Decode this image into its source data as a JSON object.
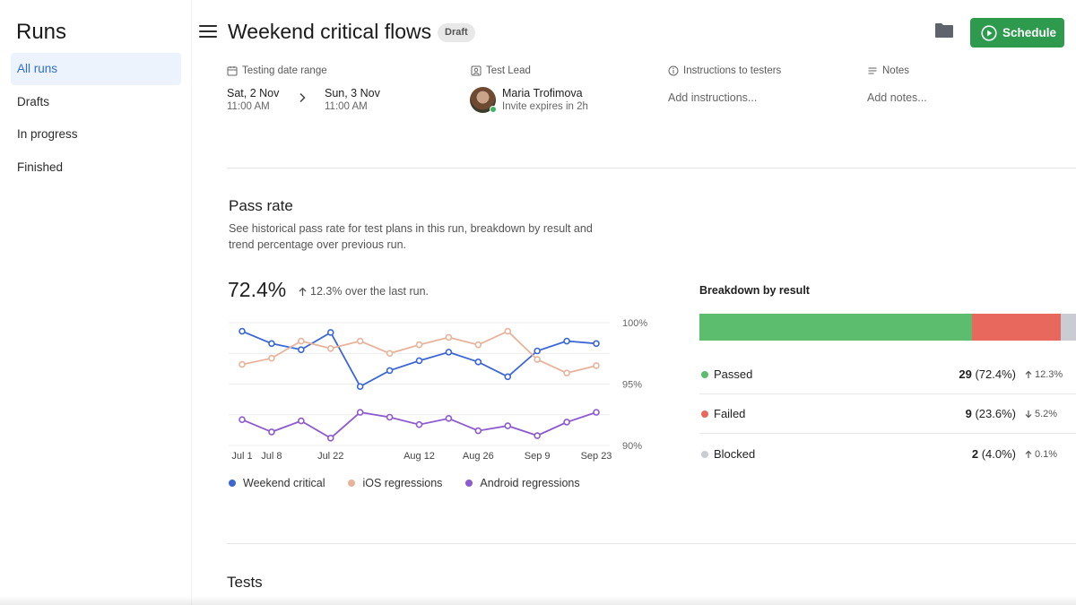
{
  "sidebar": {
    "title": "Runs",
    "items": [
      {
        "label": "All runs"
      },
      {
        "label": "Drafts"
      },
      {
        "label": "In progress"
      },
      {
        "label": "Finished"
      }
    ]
  },
  "header": {
    "title": "Weekend critical flows",
    "badge": "Draft",
    "schedule_label": "Schedule"
  },
  "meta": {
    "date_range": {
      "label": "Testing date range",
      "start_date": "Sat, 2 Nov",
      "start_time": "11:00 AM",
      "end_date": "Sun, 3 Nov",
      "end_time": "11:00 AM"
    },
    "test_lead": {
      "label": "Test Lead",
      "name": "Maria Trofimova",
      "status": "Invite expires in 2h"
    },
    "instructions": {
      "label": "Instructions to testers",
      "placeholder": "Add instructions..."
    },
    "notes": {
      "label": "Notes",
      "placeholder": "Add notes..."
    }
  },
  "pass_rate": {
    "title": "Pass rate",
    "description": "See historical pass rate for test plans in this run, breakdown by result and trend percentage over previous run.",
    "value": "72.4%",
    "trend": "12.3% over the last run."
  },
  "chart_data": {
    "type": "line",
    "title": "",
    "xlabel": "",
    "ylabel": "",
    "ylim": [
      90,
      100
    ],
    "y_ticks": [
      "100%",
      "95%",
      "90%"
    ],
    "x_tick_labels": [
      "Jul 1",
      "Jul 8",
      "Jul 22",
      "Aug 12",
      "Aug 26",
      "Sep 9",
      "Sep 23"
    ],
    "series": [
      {
        "name": "Weekend critical",
        "color": "#3a66d6",
        "values": [
          99.3,
          98.3,
          97.8,
          99.2,
          94.8,
          96.1,
          96.9,
          97.6,
          96.8,
          95.6,
          97.7,
          98.5,
          98.3
        ]
      },
      {
        "name": "iOS regressions",
        "color": "#e8b39a",
        "values": [
          96.6,
          97.1,
          98.5,
          97.9,
          98.5,
          97.5,
          98.2,
          98.8,
          98.2,
          99.3,
          97.0,
          95.9,
          96.5
        ]
      },
      {
        "name": "Android regressions",
        "color": "#8e5ad0",
        "values": [
          92.1,
          91.1,
          92.0,
          90.6,
          92.7,
          92.3,
          91.7,
          92.2,
          91.2,
          91.6,
          90.8,
          91.9,
          92.7
        ]
      }
    ]
  },
  "breakdown": {
    "title": "Breakdown by result",
    "rows": [
      {
        "label": "Passed",
        "count": "29",
        "percent": "(72.4%)",
        "trend": "12.3%",
        "direction": "up",
        "color": "#5cbd6e",
        "share": 72.4
      },
      {
        "label": "Failed",
        "count": "9",
        "percent": "(23.6%)",
        "trend": "5.2%",
        "direction": "down",
        "color": "#e8685e",
        "share": 23.6
      },
      {
        "label": "Blocked",
        "count": "2",
        "percent": "(4.0%)",
        "trend": "0.1%",
        "direction": "up",
        "color": "#c9ccd2",
        "share": 4.0
      }
    ]
  },
  "tests": {
    "title": "Tests"
  }
}
